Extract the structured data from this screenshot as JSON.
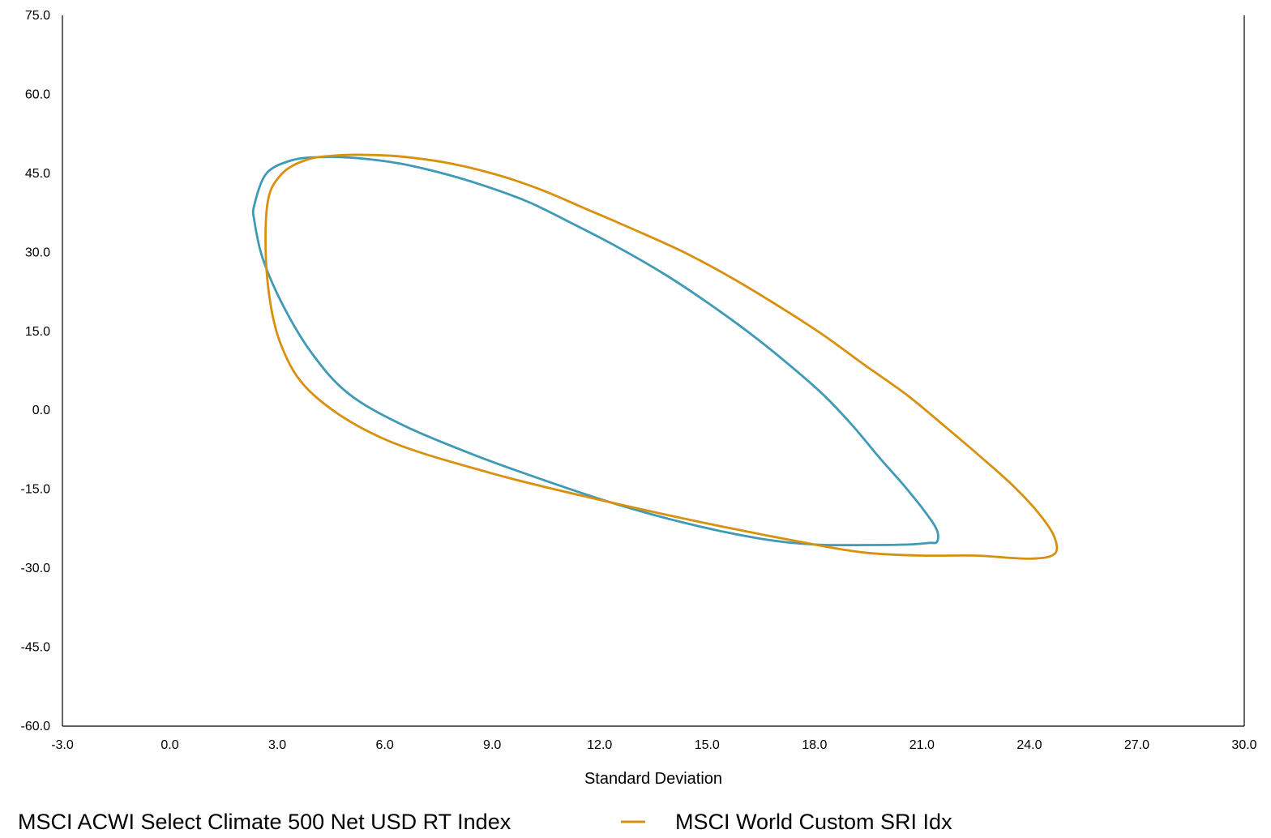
{
  "chart_data": {
    "type": "line",
    "title": "",
    "xlabel": "Standard Deviation",
    "ylabel": "",
    "xlim": [
      -3.0,
      30.0
    ],
    "ylim": [
      -60.0,
      75.0
    ],
    "x_ticks": [
      "-3.0",
      "0.0",
      "3.0",
      "6.0",
      "9.0",
      "12.0",
      "15.0",
      "18.0",
      "21.0",
      "24.0",
      "27.0",
      "30.0"
    ],
    "y_ticks": [
      "75.0",
      "60.0",
      "45.0",
      "30.0",
      "15.0",
      "0.0",
      "-15.0",
      "-30.0",
      "-45.0",
      "-60.0"
    ],
    "grid": false,
    "legend_position": "bottom",
    "series": [
      {
        "name": "MSCI ACWI Select Climate 500 Net USD RT Index",
        "color": "#3e9ab6",
        "shape": "ellipse",
        "x": [
          2.36,
          2.7,
          3.42,
          4.24,
          5.21,
          6.39,
          7.51,
          8.71,
          10.0,
          11.2,
          12.5,
          13.8,
          15.0,
          16.2,
          17.3,
          18.3,
          19.1,
          19.8,
          20.5,
          21.1,
          21.42,
          21.42,
          21.2,
          20.6,
          19.5,
          18.0,
          16.5,
          14.5,
          12.5,
          10.5,
          8.5,
          6.5,
          5.0,
          4.0,
          3.2,
          2.6,
          2.36
        ],
        "y": [
          39.0,
          45.0,
          47.5,
          48.1,
          47.9,
          46.9,
          45.2,
          42.8,
          39.6,
          35.6,
          31.0,
          25.9,
          20.5,
          14.6,
          8.6,
          2.6,
          -3.2,
          -8.9,
          -14.3,
          -19.4,
          -22.8,
          -25.0,
          -25.2,
          -25.5,
          -25.6,
          -25.5,
          -24.4,
          -21.6,
          -17.9,
          -13.4,
          -8.5,
          -2.8,
          3.1,
          10.5,
          19.4,
          28.7,
          36.0
        ]
      },
      {
        "name": "MSCI World Custom SRI Idx",
        "color": "#d9900f",
        "shape": "ellipse",
        "x": [
          2.72,
          3.11,
          3.83,
          4.67,
          5.6,
          6.6,
          7.9,
          9.2,
          10.4,
          11.6,
          12.9,
          14.3,
          15.6,
          16.9,
          18.2,
          19.4,
          20.6,
          21.7,
          22.7,
          23.6,
          24.3,
          24.7,
          24.7,
          24.0,
          22.5,
          21.0,
          19.5,
          18.0,
          15.0,
          12.0,
          9.0,
          6.0,
          4.0,
          3.1,
          2.72
        ],
        "y": [
          39.0,
          44.8,
          47.6,
          48.4,
          48.5,
          48.1,
          46.8,
          44.6,
          41.8,
          38.3,
          34.5,
          30.2,
          25.5,
          20.2,
          14.5,
          8.6,
          2.8,
          -3.4,
          -9.2,
          -14.7,
          -19.9,
          -24.1,
          -27.3,
          -28.2,
          -27.6,
          -27.6,
          -27.1,
          -25.5,
          -21.5,
          -17.0,
          -12.0,
          -5.5,
          3.0,
          12.5,
          25.0
        ]
      }
    ]
  }
}
